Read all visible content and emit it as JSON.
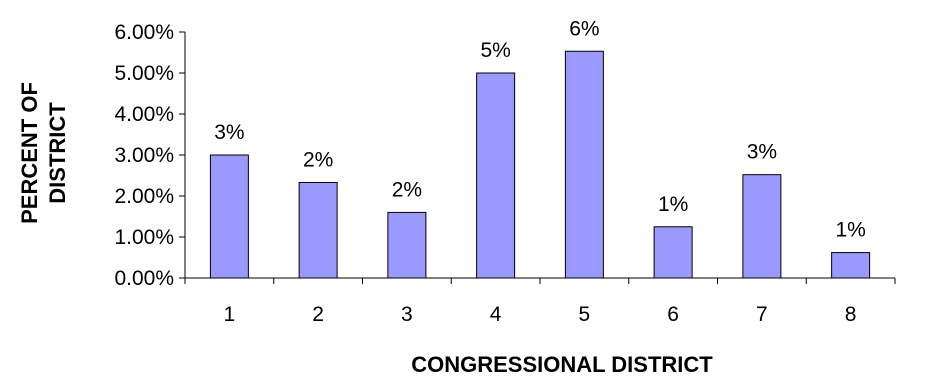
{
  "chart_data": {
    "type": "bar",
    "title": "",
    "xlabel": "CONGRESSIONAL DISTRICT",
    "ylabel_lines": [
      "PERCENT OF",
      "DISTRICT"
    ],
    "categories": [
      "1",
      "2",
      "3",
      "4",
      "5",
      "6",
      "7",
      "8"
    ],
    "values": [
      3.0,
      2.33,
      1.6,
      5.0,
      5.53,
      1.25,
      2.52,
      0.62
    ],
    "data_labels": [
      "3%",
      "2%",
      "2%",
      "5%",
      "6%",
      "1%",
      "3%",
      "1%"
    ],
    "ylim": [
      0,
      6
    ],
    "yticks": [
      0,
      1,
      2,
      3,
      4,
      5,
      6
    ],
    "ytick_labels": [
      "0.00%",
      "1.00%",
      "2.00%",
      "3.00%",
      "4.00%",
      "5.00%",
      "6.00%"
    ],
    "grid": false,
    "legend": "none",
    "bar_color": "#9999FF",
    "bar_stroke": "#000000"
  }
}
